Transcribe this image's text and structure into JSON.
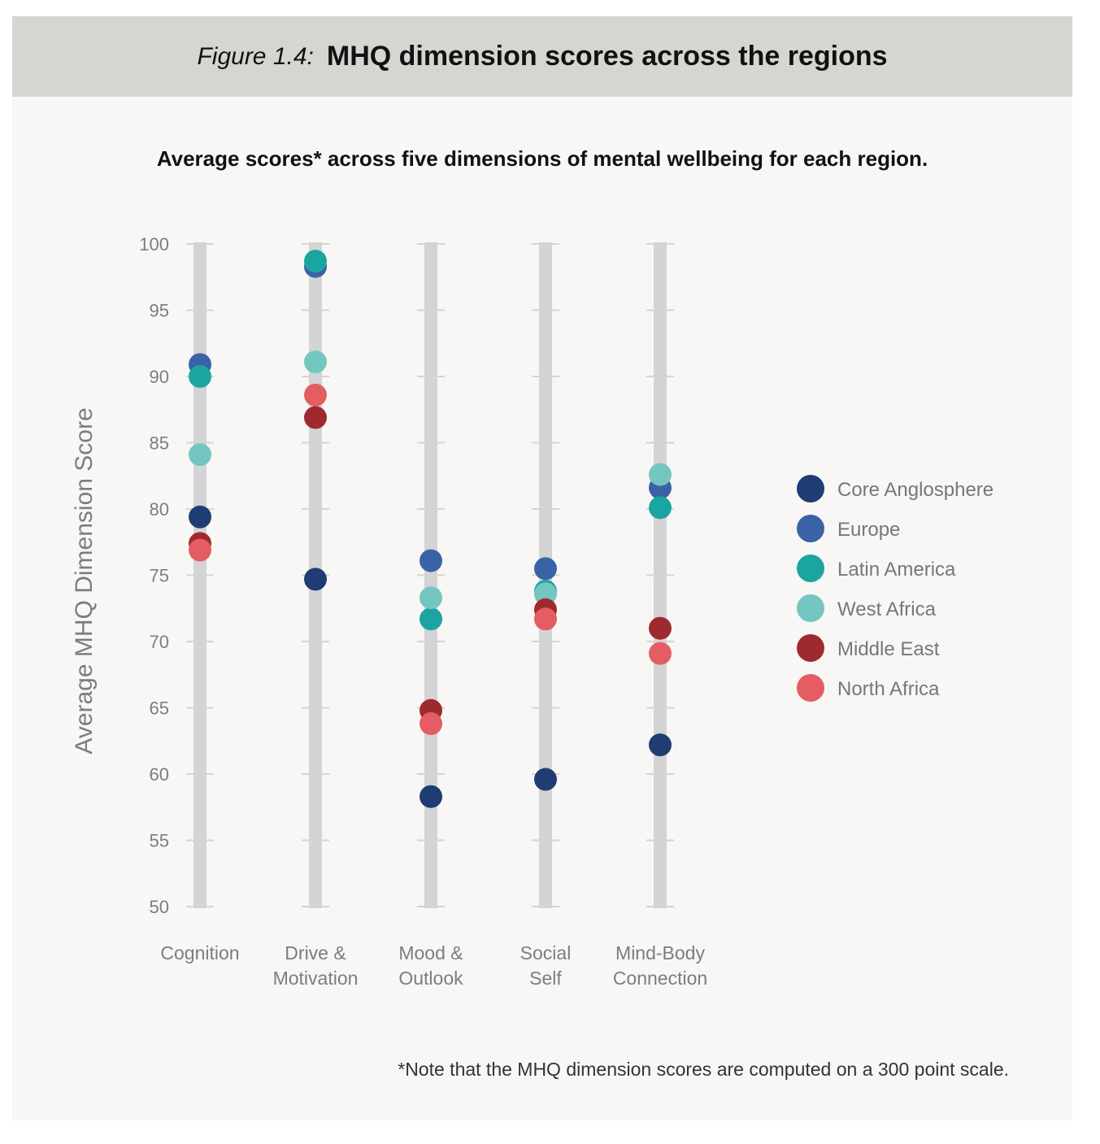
{
  "header": {
    "figure_label": "Figure 1.4:",
    "title": "MHQ dimension scores across the regions"
  },
  "subtitle": "Average scores* across five dimensions of mental wellbeing for each region.",
  "footnote": "*Note that the MHQ dimension scores are computed on a 300 point scale.",
  "colors": {
    "background": "#f8f7f5",
    "header_bg": "#d5d5d1",
    "column_bar": "#d4d3d6",
    "tick_text": "#7d7d7d",
    "category_text": "#7d7d7d"
  },
  "chart_data": {
    "type": "scatter",
    "title": "",
    "ylabel": "Average MHQ Dimension Score",
    "xlabel": "",
    "ylim": [
      50,
      100
    ],
    "yticks": [
      50,
      55,
      60,
      65,
      70,
      75,
      80,
      85,
      90,
      95,
      100
    ],
    "grid": false,
    "legend_position": "right",
    "categories": [
      [
        "Cognition"
      ],
      [
        "Drive &",
        "Motivation"
      ],
      [
        "Mood &",
        "Outlook"
      ],
      [
        "Social",
        "Self"
      ],
      [
        "Mind-Body",
        "Connection"
      ]
    ],
    "series": [
      {
        "name": "Core Anglosphere",
        "color": "#1f3d73",
        "values": [
          79.4,
          74.7,
          58.3,
          59.6,
          62.2
        ]
      },
      {
        "name": "Europe",
        "color": "#3a62a6",
        "values": [
          90.9,
          98.3,
          76.1,
          75.5,
          81.6
        ]
      },
      {
        "name": "Latin America",
        "color": "#1ba5a0",
        "values": [
          90.0,
          98.7,
          71.7,
          73.8,
          80.1
        ]
      },
      {
        "name": "West Africa",
        "color": "#74c6c1",
        "values": [
          84.1,
          91.1,
          73.3,
          73.6,
          82.6
        ]
      },
      {
        "name": "Middle East",
        "color": "#9e2a2f",
        "values": [
          77.4,
          86.9,
          64.8,
          72.4,
          71.0
        ]
      },
      {
        "name": "North Africa",
        "color": "#e35d62",
        "values": [
          76.9,
          88.6,
          63.8,
          71.7,
          69.1
        ]
      }
    ]
  }
}
